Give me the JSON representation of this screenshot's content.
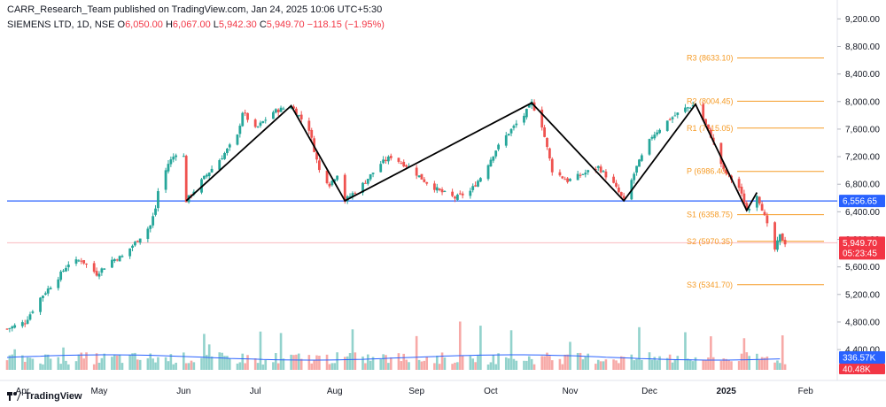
{
  "publisher": "CARR_Research_Team published on TradingView.com, Jan 24, 2025 10:06 UTC+5:30",
  "legend": {
    "symbol": "SIEMENS LTD, 1D, NSE",
    "o_label": "O",
    "o_value": "6,050.00",
    "h_label": "H",
    "h_value": "6,067.00",
    "l_label": "L",
    "l_value": "5,942.30",
    "c_label": "C",
    "c_value": "5,949.70",
    "change": "−118.15 (−1.95%)"
  },
  "brand": "TradingView",
  "chart_data": {
    "type": "candlestick",
    "y_ticks": [
      "9,200.00",
      "8,800.00",
      "8,400.00",
      "8,000.00",
      "7,600.00",
      "7,200.00",
      "6,800.00",
      "6,400.00",
      "6,000.00",
      "5,600.00",
      "5,200.00",
      "4,800.00",
      "4,400.00"
    ],
    "y_tick_values": [
      9200,
      8800,
      8400,
      8000,
      7600,
      7200,
      6800,
      6400,
      6000,
      5600,
      5200,
      4800,
      4400
    ],
    "ylim": [
      4080,
      9320
    ],
    "x_labels": [
      "Apr",
      "May",
      "Jun",
      "Jul",
      "Aug",
      "Sep",
      "Oct",
      "Nov",
      "Dec",
      "2025",
      "Feb"
    ],
    "x_label_bold": "2025",
    "pivots": [
      {
        "label": "R3 (8633.10)",
        "value": 8633.1
      },
      {
        "label": "R2 (8004.45)",
        "value": 8004.45
      },
      {
        "label": "R1 (7615.05)",
        "value": 7615.05
      },
      {
        "label": "P (6986.40)",
        "value": 6986.4
      },
      {
        "label": "S1 (6358.75)",
        "value": 6358.75
      },
      {
        "label": "S2 (5970.35)",
        "value": 5970.35
      },
      {
        "label": "S3 (5341.70)",
        "value": 5341.7
      }
    ],
    "horizontal_line": {
      "value": 6556.65,
      "label": "6,556.65",
      "color": "#2962ff"
    },
    "last_price": {
      "value": 5949.7,
      "label": "5,949.70",
      "countdown": "05:23:45",
      "color": "#f23645"
    },
    "volume_tags": [
      {
        "label": "336.57K",
        "color": "#2962ff"
      },
      {
        "label": "40.48K",
        "color": "#f23645"
      }
    ],
    "pattern_points": [
      {
        "date": "2024-06-04",
        "value": 6560
      },
      {
        "date": "2024-07-15",
        "value": 7940
      },
      {
        "date": "2024-08-05",
        "value": 6560
      },
      {
        "date": "2024-10-17",
        "value": 7980
      },
      {
        "date": "2024-11-22",
        "value": 6560
      },
      {
        "date": "2024-12-20",
        "value": 7960
      },
      {
        "date": "2025-01-09",
        "value": 6420
      },
      {
        "date": "2025-01-13",
        "value": 6680
      }
    ],
    "price_path": [
      [
        "2024-03-26",
        4700
      ],
      [
        "2024-04-02",
        4800
      ],
      [
        "2024-04-08",
        5150
      ],
      [
        "2024-04-15",
        5450
      ],
      [
        "2024-04-19",
        5650
      ],
      [
        "2024-04-24",
        5700
      ],
      [
        "2024-04-30",
        5500
      ],
      [
        "2024-05-06",
        5700
      ],
      [
        "2024-05-10",
        5750
      ],
      [
        "2024-05-15",
        5950
      ],
      [
        "2024-05-21",
        6200
      ],
      [
        "2024-05-23",
        6450
      ],
      [
        "2024-05-24",
        6700
      ],
      [
        "2024-05-28",
        7100
      ],
      [
        "2024-05-31",
        7250
      ],
      [
        "2024-06-03",
        7200
      ],
      [
        "2024-06-04",
        6560
      ],
      [
        "2024-06-10",
        6850
      ],
      [
        "2024-06-18",
        7200
      ],
      [
        "2024-06-24",
        7500
      ],
      [
        "2024-06-26",
        7850
      ],
      [
        "2024-07-01",
        7600
      ],
      [
        "2024-07-08",
        7850
      ],
      [
        "2024-07-15",
        7940
      ],
      [
        "2024-07-22",
        7600
      ],
      [
        "2024-07-26",
        7000
      ],
      [
        "2024-07-30",
        6800
      ],
      [
        "2024-08-02",
        6950
      ],
      [
        "2024-08-05",
        6560
      ],
      [
        "2024-08-12",
        6800
      ],
      [
        "2024-08-19",
        7100
      ],
      [
        "2024-08-23",
        7200
      ],
      [
        "2024-08-30",
        7050
      ],
      [
        "2024-09-05",
        6850
      ],
      [
        "2024-09-11",
        6700
      ],
      [
        "2024-09-17",
        6600
      ],
      [
        "2024-09-23",
        6700
      ],
      [
        "2024-09-27",
        6900
      ],
      [
        "2024-10-03",
        7300
      ],
      [
        "2024-10-08",
        7550
      ],
      [
        "2024-10-14",
        7800
      ],
      [
        "2024-10-17",
        7980
      ],
      [
        "2024-10-21",
        7650
      ],
      [
        "2024-10-25",
        7000
      ],
      [
        "2024-10-31",
        6850
      ],
      [
        "2024-11-06",
        6950
      ],
      [
        "2024-11-12",
        7050
      ],
      [
        "2024-11-18",
        6800
      ],
      [
        "2024-11-22",
        6560
      ],
      [
        "2024-11-27",
        7050
      ],
      [
        "2024-12-03",
        7500
      ],
      [
        "2024-12-10",
        7750
      ],
      [
        "2024-12-16",
        7900
      ],
      [
        "2024-12-20",
        7960
      ],
      [
        "2024-12-26",
        7500
      ],
      [
        "2024-12-31",
        7000
      ],
      [
        "2025-01-06",
        6750
      ],
      [
        "2025-01-09",
        6420
      ],
      [
        "2025-01-13",
        6650
      ],
      [
        "2025-01-15",
        6450
      ],
      [
        "2025-01-17",
        6200
      ],
      [
        "2025-01-20",
        5850
      ],
      [
        "2025-01-22",
        6050
      ],
      [
        "2025-01-24",
        5950
      ]
    ]
  }
}
